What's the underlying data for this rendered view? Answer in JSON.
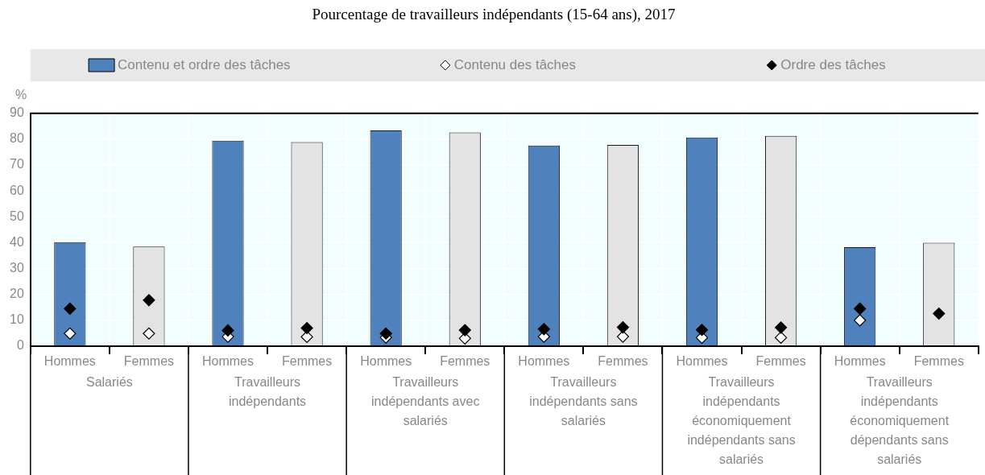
{
  "chart_data": {
    "type": "bar",
    "title": "Pourcentage de travailleurs indépendants (15-64 ans), 2017",
    "ylabel": "%",
    "categories": [
      "Hommes",
      "Femmes",
      "Hommes",
      "Femmes",
      "Hommes",
      "Femmes",
      "Hommes",
      "Femmes",
      "Hommes",
      "Femmes",
      "Hommes",
      "Femmes"
    ],
    "annotations": [
      "Salariés",
      "Travailleurs indépendants",
      "Travailleurs indépendants avec salariés",
      "Travailleurs indépendants sans salariés",
      "Travailleurs indépendants économiquement indépendants sans salariés",
      "Travailleurs indépendants économiquement dépendants sans salariés"
    ],
    "series": [
      {
        "name": "Contenu et ordre des tâches",
        "color": "#4f81bd",
        "colors": [
          "#4f81bd",
          "#e3e3e3",
          "#4f81bd",
          "#e3e3e3",
          "#4f81bd",
          "#e3e3e3",
          "#4f81bd",
          "#e3e3e3",
          "#4f81bd",
          "#e3e3e3",
          "#4f81bd",
          "#e3e3e3"
        ],
        "values": [
          40.2,
          38.5,
          79.4,
          78.9,
          83.4,
          82.6,
          77.6,
          77.8,
          80.7,
          81.3,
          38.3,
          40
        ]
      },
      {
        "name": "Contenu des tâches",
        "type": "scatter",
        "color": "#ffffff",
        "values": [
          4.9,
          4.9,
          3.7,
          3.6,
          3.4,
          3,
          3.7,
          3.7,
          3.3,
          3.3,
          10,
          null
        ]
      },
      {
        "name": "Ordre des tâches",
        "type": "scatter",
        "color": "#000000",
        "values": [
          14.5,
          17.8,
          6.1,
          7,
          4.9,
          6.2,
          6.6,
          7.3,
          6.3,
          7.2,
          14.5,
          12.6
        ]
      }
    ],
    "ylim": [
      0,
      90
    ],
    "yticks": [
      0,
      10,
      20,
      30,
      40,
      50,
      60,
      70,
      80,
      90
    ],
    "grid": true,
    "legend": "top",
    "marker": "diamond"
  }
}
